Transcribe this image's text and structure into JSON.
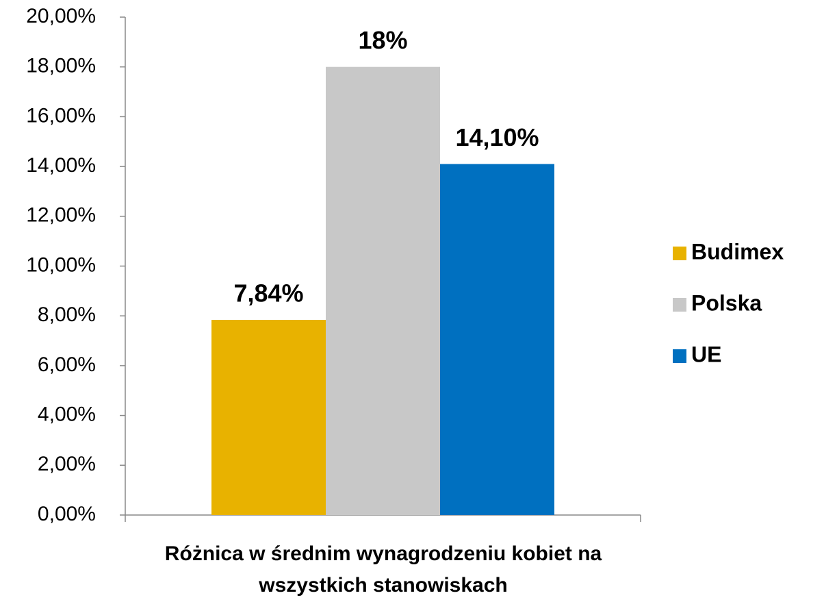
{
  "chart_data": {
    "type": "bar",
    "categories": [
      "Różnica w średnim wynagrodzeniu kobiet na wszystkich stanowiskach"
    ],
    "series": [
      {
        "name": "Budimex",
        "color": "#e8b200",
        "values": [
          7.84
        ],
        "value_labels": [
          "7,84%"
        ]
      },
      {
        "name": "Polska",
        "color": "#c8c8c8",
        "values": [
          18
        ],
        "value_labels": [
          "18%"
        ]
      },
      {
        "name": "UE",
        "color": "#0070c0",
        "values": [
          14.1
        ],
        "value_labels": [
          "14,10%"
        ]
      }
    ],
    "ylim": [
      0,
      20
    ],
    "yticks": [
      {
        "value": 0,
        "label": "0,00%"
      },
      {
        "value": 2,
        "label": "2,00%"
      },
      {
        "value": 4,
        "label": "4,00%"
      },
      {
        "value": 6,
        "label": "6,00%"
      },
      {
        "value": 8,
        "label": "8,00%"
      },
      {
        "value": 10,
        "label": "10,00%"
      },
      {
        "value": 12,
        "label": "12,00%"
      },
      {
        "value": 14,
        "label": "14,00%"
      },
      {
        "value": 16,
        "label": "16,00%"
      },
      {
        "value": 18,
        "label": "18,00%"
      },
      {
        "value": 20,
        "label": "20,00%"
      }
    ],
    "grid": false,
    "legend": "right"
  }
}
